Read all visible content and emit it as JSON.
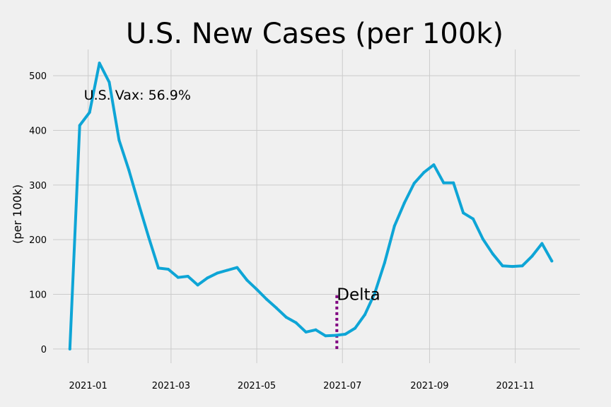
{
  "chart_data": {
    "type": "line",
    "title": "U.S. New Cases (per 100k)",
    "xlabel": "",
    "ylabel": "(per 100k)",
    "x_tick_labels": [
      "2021-01",
      "2021-03",
      "2021-05",
      "2021-07",
      "2021-09",
      "2021-11"
    ],
    "x_tick_dates": [
      "2021-01-01",
      "2021-03-01",
      "2021-05-01",
      "2021-07-01",
      "2021-09-01",
      "2021-11-01"
    ],
    "y_ticks": [
      0,
      100,
      200,
      300,
      400,
      500
    ],
    "xlim": [
      "2020-12-07",
      "2021-12-17"
    ],
    "ylim": [
      -26,
      548
    ],
    "grid": true,
    "line_color": "#0ea5d6",
    "series": [
      {
        "x": [
          "2020-12-19",
          "2020-12-26",
          "2021-01-02",
          "2021-01-09",
          "2021-01-16",
          "2021-01-23",
          "2021-01-30",
          "2021-02-06",
          "2021-02-13",
          "2021-02-20",
          "2021-02-27",
          "2021-03-06",
          "2021-03-13",
          "2021-03-20",
          "2021-03-27",
          "2021-04-03",
          "2021-04-10",
          "2021-04-17",
          "2021-04-24",
          "2021-05-01",
          "2021-05-08",
          "2021-05-15",
          "2021-05-22",
          "2021-05-29",
          "2021-06-05",
          "2021-06-12",
          "2021-06-19",
          "2021-06-26",
          "2021-07-03",
          "2021-07-10",
          "2021-07-17",
          "2021-07-24",
          "2021-07-31",
          "2021-08-07",
          "2021-08-14",
          "2021-08-21",
          "2021-08-28",
          "2021-09-04",
          "2021-09-11",
          "2021-09-18",
          "2021-09-25",
          "2021-10-02",
          "2021-10-09",
          "2021-10-16",
          "2021-10-23",
          "2021-10-30",
          "2021-11-06",
          "2021-11-13",
          "2021-11-20",
          "2021-11-27"
        ],
        "values": [
          0,
          409,
          433,
          523,
          488,
          382,
          327,
          265,
          205,
          148,
          146,
          131,
          133,
          117,
          130,
          139,
          144,
          149,
          126,
          109,
          91,
          75,
          58,
          48,
          31,
          35,
          24,
          25,
          27,
          38,
          63,
          102,
          158,
          225,
          267,
          303,
          323,
          337,
          304,
          304,
          249,
          238,
          201,
          174,
          152,
          151,
          152,
          170,
          193,
          161
        ]
      }
    ],
    "annotations": [
      {
        "text": "U.S. Vax: 56.9%",
        "x": "2021-01-01",
        "y": 465
      },
      {
        "text": "Delta",
        "x": "2021-06-27",
        "y": 100
      }
    ],
    "vline": {
      "x": "2021-06-27",
      "y_from": 0,
      "y_to": 100,
      "color": "#800080",
      "style": "dotted"
    }
  }
}
